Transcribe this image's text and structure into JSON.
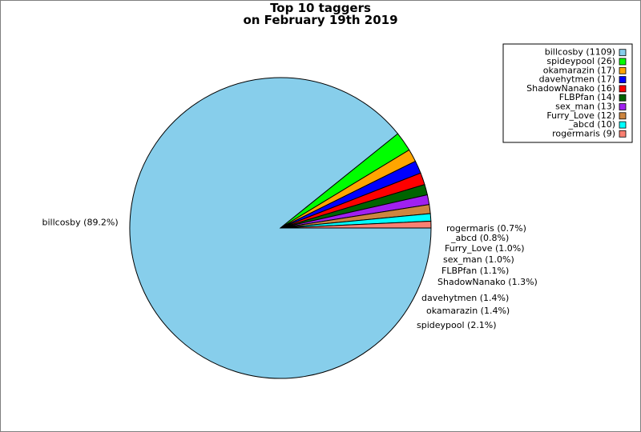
{
  "chart_data": {
    "type": "pie",
    "title_line1": "Top 10 taggers",
    "title_line2": "on February 19th 2019",
    "start_angle_deg": 0,
    "direction": "clockwise",
    "legend_position": "top-right",
    "slices": [
      {
        "name": "billcosby",
        "value": 1109,
        "pct_label": "billcosby (89.2%)",
        "legend_label": "billcosby (1109)",
        "color": "#87ceeb"
      },
      {
        "name": "spideypool",
        "value": 26,
        "pct_label": "spideypool (2.1%)",
        "legend_label": "spideypool (26)",
        "color": "#00ff00"
      },
      {
        "name": "okamarazin",
        "value": 17,
        "pct_label": "okamarazin (1.4%)",
        "legend_label": "okamarazin (17)",
        "color": "#ffa500"
      },
      {
        "name": "davehytmen",
        "value": 17,
        "pct_label": "davehytmen (1.4%)",
        "legend_label": "davehytmen (17)",
        "color": "#0000ff"
      },
      {
        "name": "ShadowNanako",
        "value": 16,
        "pct_label": "ShadowNanako (1.3%)",
        "legend_label": "ShadowNanako (16)",
        "color": "#ff0000"
      },
      {
        "name": "FLBPfan",
        "value": 14,
        "pct_label": "FLBPfan (1.1%)",
        "legend_label": "FLBPfan (14)",
        "color": "#006400"
      },
      {
        "name": "sex_man",
        "value": 13,
        "pct_label": "sex_man (1.0%)",
        "legend_label": "sex_man (13)",
        "color": "#a020f0"
      },
      {
        "name": "Furry_Love",
        "value": 12,
        "pct_label": "Furry_Love (1.0%)",
        "legend_label": "Furry_Love (12)",
        "color": "#cd853f"
      },
      {
        "name": "_abcd",
        "value": 10,
        "pct_label": "_abcd (0.8%)",
        "legend_label": "_abcd (10)",
        "color": "#00ffff"
      },
      {
        "name": "rogermaris",
        "value": 9,
        "pct_label": "rogermaris (0.7%)",
        "legend_label": "rogermaris (9)",
        "color": "#fa8072"
      }
    ]
  }
}
